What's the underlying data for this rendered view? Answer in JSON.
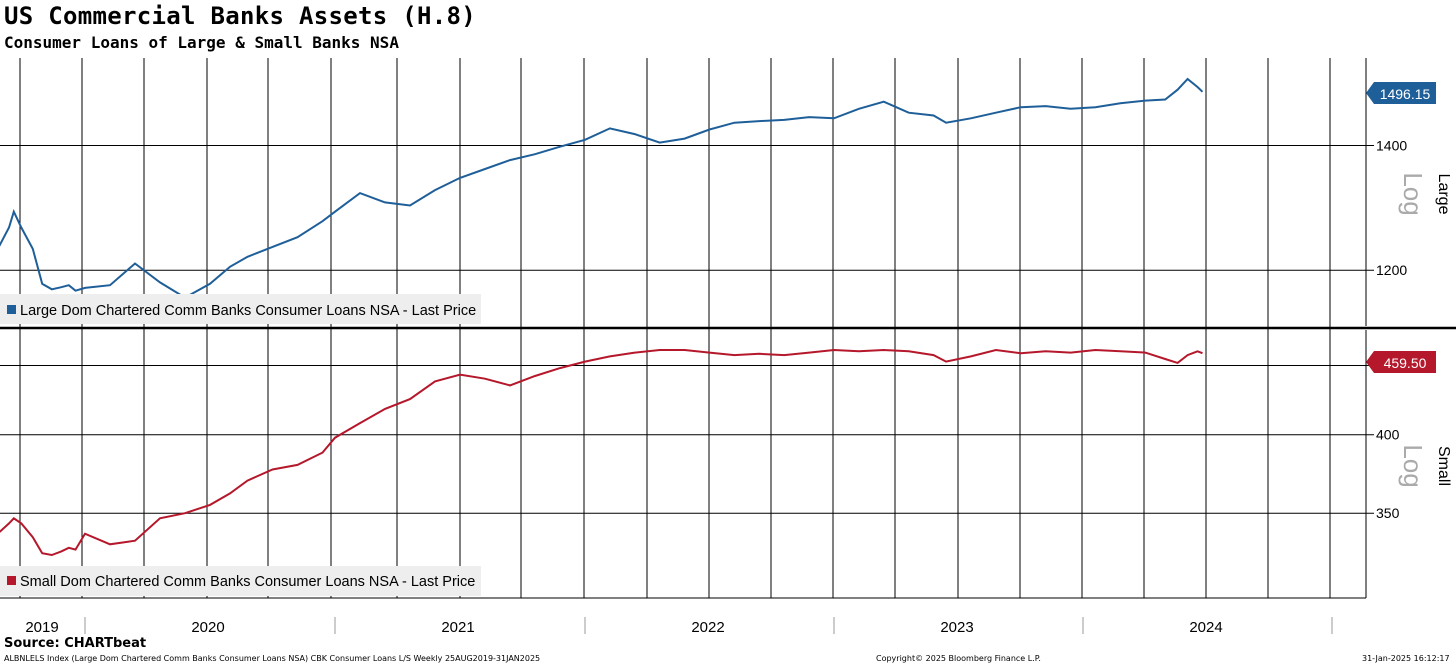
{
  "header": {
    "title": "US Commercial Banks Assets (H.8)",
    "subtitle": "Consumer Loans of Large & Small Banks NSA"
  },
  "footer": {
    "source": "Source: CHARTbeat",
    "index_note": "ALBNLELS Index (Large Dom Chartered Comm Banks Consumer Loans NSA) CBK Consumer Loans L/S  Weekly 25AUG2019-31JAN2025",
    "copyright": "Copyright© 2025 Bloomberg Finance L.P.",
    "timestamp": "31-Jan-2025 16:12:17"
  },
  "colors": {
    "large": "#1f5f99",
    "small": "#b5172b"
  },
  "chart_data": [
    {
      "type": "line",
      "panel": "top",
      "axis_side_label": "Large",
      "scale_label": "Log",
      "log_scale": true,
      "ylim": [
        1120,
        1560
      ],
      "y_ticks": [
        1200,
        1400
      ],
      "last_value_label": "1496.15",
      "legend": "Large Dom Chartered Comm Banks Consumer Loans NSA - Last Price",
      "xlim": [
        2019.0,
        2024.5
      ],
      "series": [
        {
          "name": "Large Dom Chartered Comm Banks Consumer Loans NSA - Last Price",
          "x": [
            2019.0,
            2019.1,
            2019.2,
            2019.25,
            2019.33,
            2019.45,
            2019.55,
            2019.65,
            2019.75,
            2019.83,
            2019.9,
            2020.0,
            2020.1,
            2020.2,
            2020.3,
            2020.4,
            2020.5,
            2020.58,
            2020.65,
            2020.75,
            2020.85,
            2020.95,
            2021.0,
            2021.1,
            2021.2,
            2021.3,
            2021.4,
            2021.5,
            2021.6,
            2021.7,
            2021.8,
            2021.9,
            2022.0,
            2022.1,
            2022.2,
            2022.3,
            2022.4,
            2022.5,
            2022.6,
            2022.7,
            2022.8,
            2022.9,
            2023.0,
            2023.1,
            2023.2,
            2023.3,
            2023.4,
            2023.45,
            2023.55,
            2023.65,
            2023.75,
            2023.85,
            2023.95,
            2024.05,
            2024.15,
            2024.25,
            2024.33,
            2024.38,
            2024.42,
            2024.46,
            2024.48
          ],
          "values": [
            1232,
            1237,
            1265,
            1290,
            1265,
            1232,
            1180,
            1172,
            1175,
            1178,
            1170,
            1174,
            1178,
            1210,
            1182,
            1160,
            1180,
            1205,
            1220,
            1235,
            1250,
            1275,
            1290,
            1320,
            1305,
            1300,
            1325,
            1345,
            1360,
            1375,
            1385,
            1398,
            1410,
            1430,
            1420,
            1405,
            1412,
            1428,
            1440,
            1443,
            1445,
            1450,
            1448,
            1465,
            1478,
            1458,
            1453,
            1440,
            1448,
            1458,
            1468,
            1470,
            1465,
            1468,
            1475,
            1480,
            1482,
            1500,
            1520,
            1505,
            1496.15
          ]
        }
      ]
    },
    {
      "type": "line",
      "panel": "bottom",
      "axis_side_label": "Small",
      "scale_label": "Log",
      "log_scale": true,
      "ylim": [
        303,
        478
      ],
      "y_ticks": [
        350,
        400,
        450
      ],
      "last_value_label": "459.50",
      "legend": "Small Dom Chartered Comm Banks Consumer Loans NSA - Last Price",
      "xlim": [
        2019.0,
        2024.5
      ],
      "series": [
        {
          "name": "Small Dom Chartered Comm Banks Consumer Loans NSA - Last Price",
          "x": [
            2019.0,
            2019.1,
            2019.2,
            2019.25,
            2019.33,
            2019.45,
            2019.55,
            2019.65,
            2019.75,
            2019.83,
            2019.9,
            2020.0,
            2020.1,
            2020.2,
            2020.3,
            2020.4,
            2020.5,
            2020.58,
            2020.65,
            2020.75,
            2020.85,
            2020.95,
            2021.0,
            2021.1,
            2021.2,
            2021.3,
            2021.4,
            2021.5,
            2021.6,
            2021.7,
            2021.8,
            2021.9,
            2022.0,
            2022.1,
            2022.2,
            2022.3,
            2022.4,
            2022.5,
            2022.6,
            2022.7,
            2022.8,
            2022.9,
            2023.0,
            2023.1,
            2023.2,
            2023.3,
            2023.4,
            2023.45,
            2023.55,
            2023.65,
            2023.75,
            2023.85,
            2023.95,
            2024.05,
            2024.15,
            2024.25,
            2024.33,
            2024.38,
            2024.42,
            2024.46,
            2024.48
          ],
          "values": [
            337,
            339,
            344,
            347,
            344,
            336,
            327,
            326,
            328,
            330,
            329,
            338,
            332,
            334,
            347,
            350,
            355,
            362,
            370,
            377,
            380,
            388,
            398,
            408,
            418,
            425,
            438,
            443,
            440,
            435,
            442,
            448,
            453,
            457,
            460,
            462,
            462,
            460,
            458,
            459,
            458,
            460,
            462,
            461,
            462,
            461,
            458,
            453,
            457,
            462,
            459.5,
            461,
            460,
            462,
            461,
            460,
            455,
            452,
            458,
            461,
            459.5
          ]
        }
      ]
    }
  ],
  "x_axis": {
    "year_labels": [
      "2019",
      "2020",
      "2021",
      "2022",
      "2023",
      "2024"
    ]
  }
}
